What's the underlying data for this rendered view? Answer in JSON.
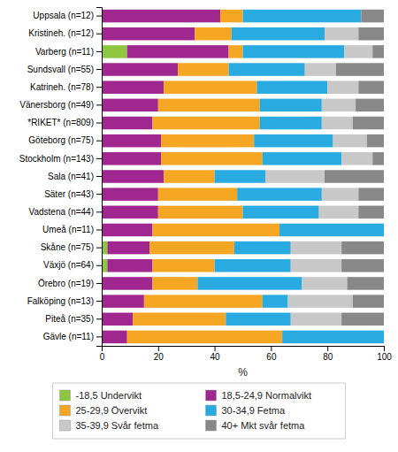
{
  "chart_data": {
    "type": "bar",
    "orientation": "horizontal",
    "stacked": true,
    "categories": [
      "Uppsala (n=12)",
      "Kristineh. (n=12)",
      "Varberg (n=11)",
      "Sundsvall (n=55)",
      "Katrineh. (n=78)",
      "Vänersborg (n=49)",
      "*RIKET* (n=809)",
      "Göteborg (n=75)",
      "Stockholm (n=143)",
      "Sala (n=41)",
      "Säter (n=43)",
      "Vadstena (n=44)",
      "Umeå (n=11)",
      "Skåne (n=75)",
      "Växjö (n=64)",
      "Örebro (n=19)",
      "Falköping (n=13)",
      "Piteå (n=35)",
      "Gävle (n=11)"
    ],
    "series": [
      {
        "name": "-18,5 Undervikt",
        "color": "#8dc63f",
        "values": [
          0,
          0,
          9,
          0,
          0,
          0,
          0,
          0,
          0,
          0,
          0,
          0,
          0,
          2,
          2,
          0,
          0,
          0,
          0
        ]
      },
      {
        "name": "18,5-24,9 Normalvikt",
        "color": "#a0278f",
        "values": [
          42,
          33,
          36,
          27,
          22,
          20,
          18,
          21,
          21,
          22,
          20,
          20,
          18,
          15,
          16,
          18,
          15,
          11,
          9
        ]
      },
      {
        "name": "25-29,9 Övervikt",
        "color": "#f5a623",
        "values": [
          8,
          13,
          5,
          18,
          33,
          36,
          38,
          33,
          36,
          18,
          28,
          30,
          45,
          30,
          22,
          16,
          42,
          33,
          55
        ]
      },
      {
        "name": "30-34,9 Fetma",
        "color": "#29abe2",
        "values": [
          42,
          33,
          36,
          27,
          25,
          22,
          22,
          28,
          28,
          18,
          30,
          27,
          37,
          20,
          27,
          37,
          9,
          23,
          36
        ]
      },
      {
        "name": "35-39,9 Svår fetma",
        "color": "#c8c8c8",
        "values": [
          0,
          12,
          10,
          11,
          11,
          12,
          11,
          12,
          11,
          21,
          13,
          14,
          0,
          18,
          18,
          16,
          23,
          18,
          0
        ]
      },
      {
        "name": "40+ Mkt svår fetma",
        "color": "#888888",
        "values": [
          8,
          9,
          4,
          17,
          9,
          10,
          11,
          6,
          4,
          21,
          9,
          9,
          0,
          15,
          15,
          13,
          11,
          15,
          0
        ]
      }
    ],
    "xlabel": "%",
    "xlim": [
      0,
      100
    ],
    "xticks": [
      0,
      20,
      40,
      60,
      80,
      100
    ],
    "grid": false,
    "legend": "bottom"
  }
}
